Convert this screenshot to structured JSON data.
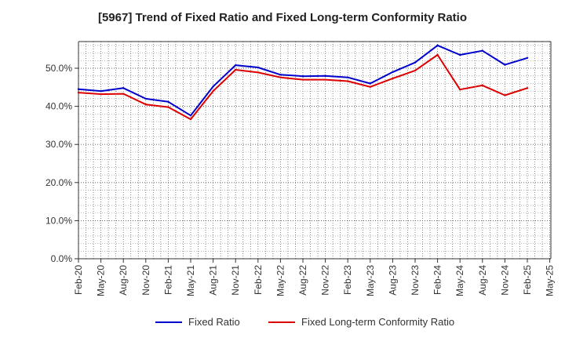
{
  "chart_data": {
    "type": "line",
    "title": "[5967]  Trend of Fixed Ratio and Fixed Long-term Conformity Ratio",
    "xlabel": "",
    "ylabel": "",
    "ylim": [
      0,
      57
    ],
    "y_ticks": [
      0,
      10,
      20,
      30,
      40,
      50
    ],
    "y_tick_labels": [
      "0.0%",
      "10.0%",
      "20.0%",
      "30.0%",
      "40.0%",
      "50.0%"
    ],
    "grid": true,
    "legend_position": "bottom",
    "x_tick_labels": [
      "Feb-20",
      "May-20",
      "Aug-20",
      "Nov-20",
      "Feb-21",
      "May-21",
      "Aug-21",
      "Nov-21",
      "Feb-22",
      "May-22",
      "Aug-22",
      "Nov-22",
      "Feb-23",
      "May-23",
      "Aug-23",
      "Nov-23",
      "Feb-24",
      "May-24",
      "Aug-24",
      "Nov-24",
      "Feb-25",
      "May-25"
    ],
    "x": [
      "Feb-20",
      "May-20",
      "Aug-20",
      "Nov-20",
      "Feb-21",
      "May-21",
      "Aug-21",
      "Nov-21",
      "Feb-22",
      "May-22",
      "Aug-22",
      "Nov-22",
      "Feb-23",
      "May-23",
      "Aug-23",
      "Nov-23",
      "Feb-24",
      "May-24",
      "Aug-24",
      "Nov-24",
      "Feb-25"
    ],
    "series": [
      {
        "name": "Fixed Ratio",
        "color": "#0000cc",
        "values": [
          44.5,
          44.0,
          44.8,
          42.0,
          41.2,
          37.6,
          45.2,
          50.8,
          50.2,
          48.3,
          47.9,
          48.0,
          47.6,
          46.0,
          49.0,
          51.5,
          56.0,
          53.5,
          54.6,
          50.9,
          52.7
        ]
      },
      {
        "name": "Fixed Long-term Conformity Ratio",
        "color": "#dd0000",
        "values": [
          43.6,
          43.2,
          43.3,
          40.5,
          39.8,
          36.6,
          44.0,
          49.6,
          48.9,
          47.6,
          47.0,
          47.0,
          46.6,
          45.1,
          47.3,
          49.4,
          53.5,
          44.4,
          45.5,
          42.9,
          44.8
        ]
      }
    ]
  }
}
